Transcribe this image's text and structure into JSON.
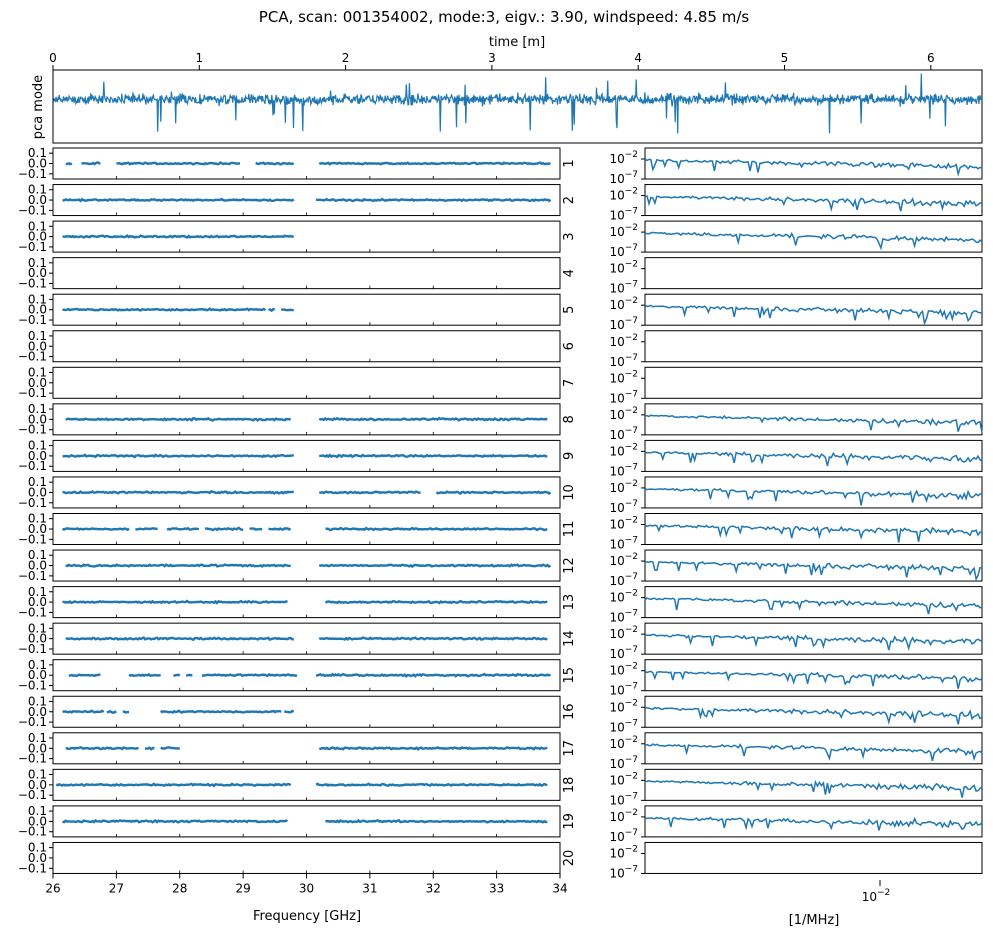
{
  "chart_data": {
    "type": "line",
    "title": "PCA, scan: 001354002, mode:3, eigv.: 3.90, windspeed: 4.85 m/s",
    "series_color": "#1f77b4",
    "time_panel": {
      "xlabel": "time [m]",
      "ylabel": "pca mode",
      "xlim": [
        0,
        6.35
      ],
      "xticks": [
        "0",
        "1",
        "2",
        "3",
        "4",
        "5",
        "6"
      ]
    },
    "spectra_panels": {
      "xlabel": "Frequency [GHz]",
      "xlim": [
        26,
        34
      ],
      "xticks": [
        "26",
        "27",
        "28",
        "29",
        "30",
        "31",
        "32",
        "33",
        "34"
      ],
      "ylim": [
        -0.15,
        0.15
      ],
      "yticks": [
        "0.1",
        "0.0",
        "−0.1"
      ],
      "channels": [
        {
          "label": "1",
          "visible": true,
          "segments": [
            [
              26.2,
              26.3
            ],
            [
              26.45,
              26.75
            ],
            [
              27.0,
              28.95
            ],
            [
              29.2,
              29.8
            ],
            [
              30.2,
              33.85
            ]
          ]
        },
        {
          "label": "2",
          "visible": true,
          "segments": [
            [
              26.15,
              29.8
            ],
            [
              30.15,
              33.85
            ]
          ]
        },
        {
          "label": "3",
          "visible": true,
          "segments": [
            [
              26.15,
              29.8
            ]
          ]
        },
        {
          "label": "4",
          "visible": false,
          "segments": []
        },
        {
          "label": "5",
          "visible": true,
          "segments": [
            [
              26.15,
              29.35
            ],
            [
              29.4,
              29.5
            ],
            [
              29.6,
              29.8
            ]
          ]
        },
        {
          "label": "6",
          "visible": false,
          "segments": []
        },
        {
          "label": "7",
          "visible": false,
          "segments": []
        },
        {
          "label": "8",
          "visible": true,
          "segments": [
            [
              26.2,
              29.75
            ],
            [
              30.2,
              33.8
            ]
          ]
        },
        {
          "label": "9",
          "visible": true,
          "segments": [
            [
              26.15,
              29.8
            ],
            [
              30.2,
              33.8
            ]
          ]
        },
        {
          "label": "10",
          "visible": true,
          "segments": [
            [
              26.15,
              29.8
            ],
            [
              30.2,
              31.8
            ],
            [
              32.05,
              33.85
            ]
          ]
        },
        {
          "label": "11",
          "visible": true,
          "segments": [
            [
              26.15,
              27.2
            ],
            [
              27.3,
              27.65
            ],
            [
              27.8,
              28.3
            ],
            [
              28.4,
              29.0
            ],
            [
              29.1,
              29.3
            ],
            [
              29.4,
              29.75
            ],
            [
              30.3,
              33.8
            ]
          ]
        },
        {
          "label": "12",
          "visible": true,
          "segments": [
            [
              26.2,
              29.75
            ],
            [
              30.2,
              33.85
            ]
          ]
        },
        {
          "label": "13",
          "visible": true,
          "segments": [
            [
              26.15,
              29.7
            ],
            [
              30.3,
              33.8
            ]
          ]
        },
        {
          "label": "14",
          "visible": true,
          "segments": [
            [
              26.2,
              29.8
            ],
            [
              30.2,
              33.8
            ]
          ]
        },
        {
          "label": "15",
          "visible": true,
          "segments": [
            [
              26.25,
              26.75
            ],
            [
              27.2,
              27.7
            ],
            [
              27.9,
              28.0
            ],
            [
              28.1,
              28.2
            ],
            [
              28.35,
              29.55
            ],
            [
              29.55,
              29.85
            ],
            [
              30.15,
              33.85
            ]
          ]
        },
        {
          "label": "16",
          "visible": true,
          "segments": [
            [
              26.15,
              26.8
            ],
            [
              26.85,
              27.0
            ],
            [
              27.1,
              27.2
            ],
            [
              27.7,
              29.6
            ],
            [
              29.65,
              29.8
            ]
          ]
        },
        {
          "label": "17",
          "visible": true,
          "segments": [
            [
              26.2,
              27.35
            ],
            [
              27.45,
              27.6
            ],
            [
              27.7,
              28.0
            ],
            [
              30.2,
              33.8
            ]
          ]
        },
        {
          "label": "18",
          "visible": true,
          "segments": [
            [
              26.05,
              29.75
            ],
            [
              30.15,
              33.8
            ]
          ]
        },
        {
          "label": "19",
          "visible": true,
          "segments": [
            [
              26.15,
              29.7
            ],
            [
              30.3,
              33.8
            ]
          ]
        },
        {
          "label": "20",
          "visible": false,
          "segments": []
        }
      ]
    },
    "psd_panels": {
      "xlabel": "[1/MHz]",
      "xscale": "log",
      "xticks": [
        "10"
      ],
      "xtick_exponent": "−2",
      "yscale": "log",
      "yticks": [
        {
          "base": "10",
          "exp": "−2"
        },
        {
          "base": "10",
          "exp": "−7"
        }
      ]
    }
  }
}
